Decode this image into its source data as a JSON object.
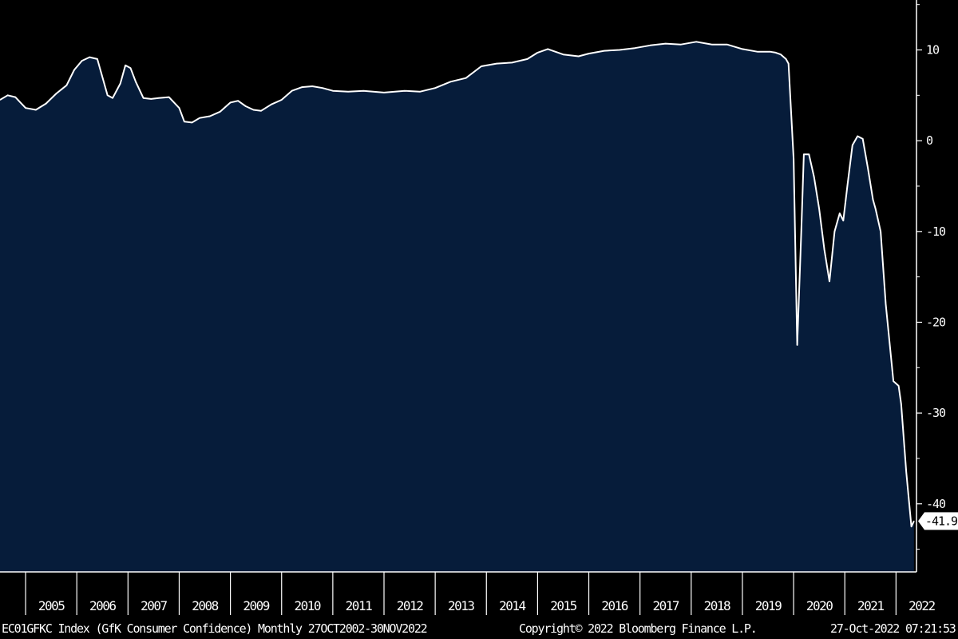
{
  "chart_data": {
    "type": "area",
    "title": "",
    "xlabel": "",
    "ylabel": "",
    "x_tick_labels": [
      "2005",
      "2006",
      "2007",
      "2008",
      "2009",
      "2010",
      "2011",
      "2012",
      "2013",
      "2014",
      "2015",
      "2016",
      "2017",
      "2018",
      "2019",
      "2020",
      "2021",
      "2022"
    ],
    "y_ticks": [
      10,
      0,
      -10,
      -20,
      -30,
      -40
    ],
    "y_tick_labels": [
      "10",
      "0",
      "-10",
      "-20",
      "-30",
      "-40"
    ],
    "ylim": [
      -47.5,
      15.5
    ],
    "xlim": [
      2004.5,
      2022.4
    ],
    "y_axis_position": "right",
    "grid": false,
    "fill_color": "#061c3a",
    "line_color": "#ffffff",
    "last_value_label": "-41.9",
    "series": [
      {
        "x": [
          2004.5,
          2004.65,
          2004.8,
          2005.0,
          2005.2,
          2005.4,
          2005.6,
          2005.8,
          2005.95,
          2006.1,
          2006.25,
          2006.4,
          2006.6,
          2006.7,
          2006.85,
          2006.95,
          2007.05,
          2007.15,
          2007.3,
          2007.45,
          2007.6,
          2007.8,
          2008.0,
          2008.1,
          2008.25,
          2008.4,
          2008.6,
          2008.8,
          2009.0,
          2009.15,
          2009.3,
          2009.45,
          2009.6,
          2009.8,
          2010.0,
          2010.2,
          2010.4,
          2010.6,
          2010.8,
          2011.0,
          2011.3,
          2011.6,
          2012.0,
          2012.4,
          2012.7,
          2013.0,
          2013.3,
          2013.6,
          2013.9,
          2014.2,
          2014.5,
          2014.8,
          2015.0,
          2015.2,
          2015.5,
          2015.8,
          2016.0,
          2016.3,
          2016.6,
          2016.9,
          2017.2,
          2017.5,
          2017.8,
          2018.1,
          2018.4,
          2018.7,
          2019.0,
          2019.3,
          2019.55,
          2019.65,
          2019.75,
          2019.85,
          2019.9,
          2020.0,
          2020.07,
          2020.15,
          2020.2,
          2020.3,
          2020.4,
          2020.5,
          2020.6,
          2020.7,
          2020.8,
          2020.9,
          2020.97,
          2021.05,
          2021.15,
          2021.25,
          2021.35,
          2021.45,
          2021.55,
          2021.6,
          2021.7,
          2021.8,
          2021.95,
          2022.05,
          2022.1,
          2022.2,
          2022.3,
          2022.35
        ],
        "y": [
          4.5,
          5.0,
          4.8,
          3.6,
          3.4,
          4.1,
          5.2,
          6.1,
          7.8,
          8.8,
          9.2,
          9.0,
          5.0,
          4.7,
          6.3,
          8.3,
          8.0,
          6.5,
          4.7,
          4.6,
          4.7,
          4.8,
          3.6,
          2.1,
          2.0,
          2.5,
          2.7,
          3.2,
          4.2,
          4.4,
          3.8,
          3.4,
          3.3,
          4.0,
          4.5,
          5.5,
          5.9,
          6.0,
          5.8,
          5.5,
          5.4,
          5.5,
          5.3,
          5.5,
          5.4,
          5.8,
          6.5,
          6.9,
          8.2,
          8.5,
          8.6,
          9.0,
          9.7,
          10.1,
          9.5,
          9.3,
          9.6,
          9.9,
          10.0,
          10.2,
          10.5,
          10.7,
          10.6,
          10.9,
          10.6,
          10.6,
          10.1,
          9.8,
          9.8,
          9.7,
          9.5,
          9.0,
          8.5,
          -2.0,
          -22.5,
          -10.0,
          -1.5,
          -1.5,
          -4.0,
          -7.5,
          -12.0,
          -15.5,
          -10.0,
          -8.0,
          -8.8,
          -5.0,
          -0.5,
          0.5,
          0.2,
          -3.0,
          -6.5,
          -7.5,
          -10.0,
          -18.0,
          -26.5,
          -27.0,
          -29.0,
          -36.5,
          -42.5,
          -41.9
        ]
      }
    ]
  },
  "footer": {
    "description": "EC01GFKC Index (GfK Consumer Confidence)  Monthly 27OCT2002-30NOV2022",
    "copyright": "Copyright© 2022 Bloomberg Finance L.P.",
    "timestamp": "27-Oct-2022 07:21:53"
  }
}
